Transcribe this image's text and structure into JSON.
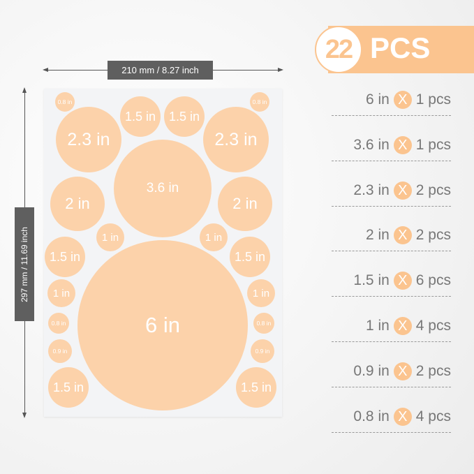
{
  "dimensions": {
    "width_label": "210 mm / 8.27 inch",
    "height_label": "297 mm / 11.69 inch"
  },
  "header": {
    "count": "22",
    "unit": "PCS"
  },
  "colors": {
    "accent": "#fbc48f",
    "circle": "#fcd2aa",
    "label_bg": "#5f5f5f"
  },
  "list": [
    {
      "size": "6 in",
      "qty": "1 pcs"
    },
    {
      "size": "3.6 in",
      "qty": "1 pcs"
    },
    {
      "size": "2.3 in",
      "qty": "2 pcs"
    },
    {
      "size": "2 in",
      "qty": "2 pcs"
    },
    {
      "size": "1.5 in",
      "qty": "6 pcs"
    },
    {
      "size": "1 in",
      "qty": "4 pcs"
    },
    {
      "size": "0.9 in",
      "qty": "2 pcs"
    },
    {
      "size": "0.8 in",
      "qty": "4 pcs"
    }
  ],
  "times_symbol": "X",
  "circles": [
    "0.8 in",
    "1.5 in",
    "1.5 in",
    "0.8 in",
    "2.3 in",
    "2.3 in",
    "3.6 in",
    "2 in",
    "2 in",
    "1 in",
    "1 in",
    "1.5 in",
    "1.5 in",
    "6 in",
    "1 in",
    "1 in",
    "0.8 in",
    "0.8 in",
    "0.9 in",
    "0.9 in",
    "1.5 in",
    "1.5 in"
  ]
}
